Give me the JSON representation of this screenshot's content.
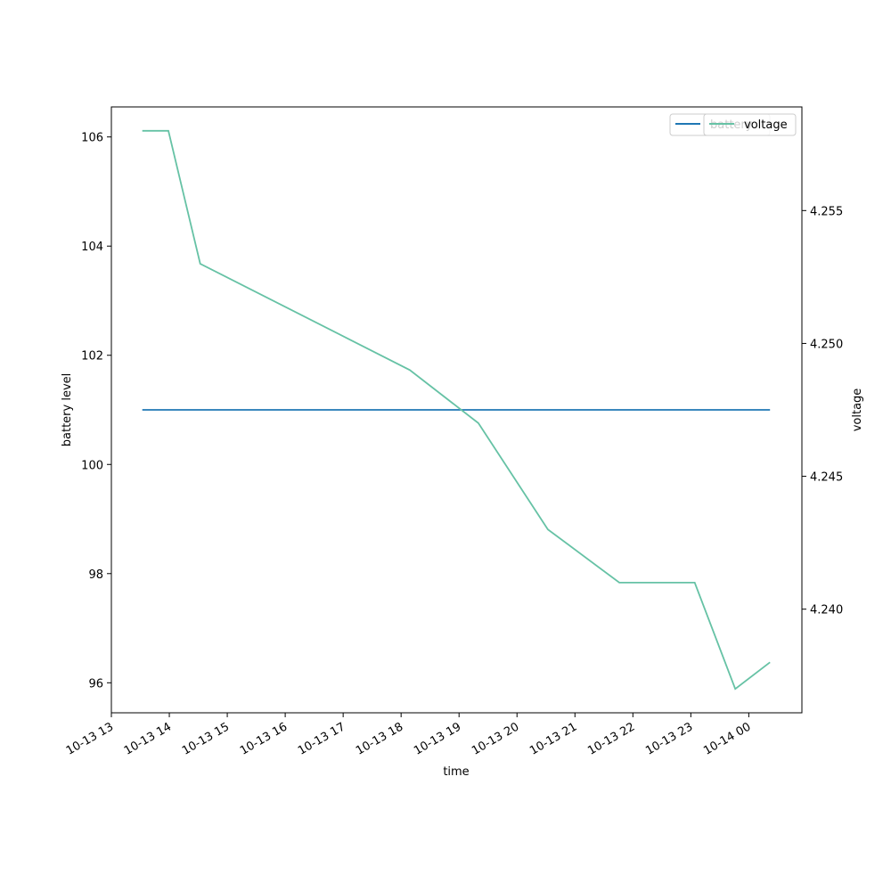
{
  "chart_data": {
    "type": "line",
    "xlabel": "time",
    "ylabel_left": "battery level",
    "ylabel_right": "voltage",
    "x_tick_labels": [
      "10-13 13",
      "10-13 14",
      "10-13 15",
      "10-13 16",
      "10-13 17",
      "10-13 18",
      "10-13 19",
      "10-13 20",
      "10-13 21",
      "10-13 22",
      "10-13 23",
      "10-14 00"
    ],
    "x_range": [
      "2021-10-13 13:00",
      "2021-10-14 00:55"
    ],
    "y_left_ticks": [
      "96",
      "98",
      "100",
      "102",
      "104",
      "106"
    ],
    "y_left_range": [
      95.45,
      106.55
    ],
    "y_right_ticks": [
      "4.240",
      "4.245",
      "4.250",
      "4.255"
    ],
    "y_right_range": [
      4.2361,
      4.2589
    ],
    "legend": "upper right",
    "grid": false,
    "series": [
      {
        "name": "battery",
        "axis": "left",
        "color": "#1f77b4",
        "x": [
          "2021-10-13 13:32",
          "2021-10-14 00:22"
        ],
        "values": [
          101,
          101
        ]
      },
      {
        "name": "voltage",
        "axis": "right",
        "color": "#66c2a5",
        "x": [
          "2021-10-13 13:32",
          "2021-10-13 13:59",
          "2021-10-13 14:32",
          "2021-10-13 18:09",
          "2021-10-13 19:20",
          "2021-10-13 20:32",
          "2021-10-13 21:46",
          "2021-10-13 23:04",
          "2021-10-13 23:46",
          "2021-10-14 00:22"
        ],
        "values": [
          4.258,
          4.258,
          4.253,
          4.249,
          4.247,
          4.243,
          4.241,
          4.241,
          4.237,
          4.238
        ]
      }
    ]
  }
}
